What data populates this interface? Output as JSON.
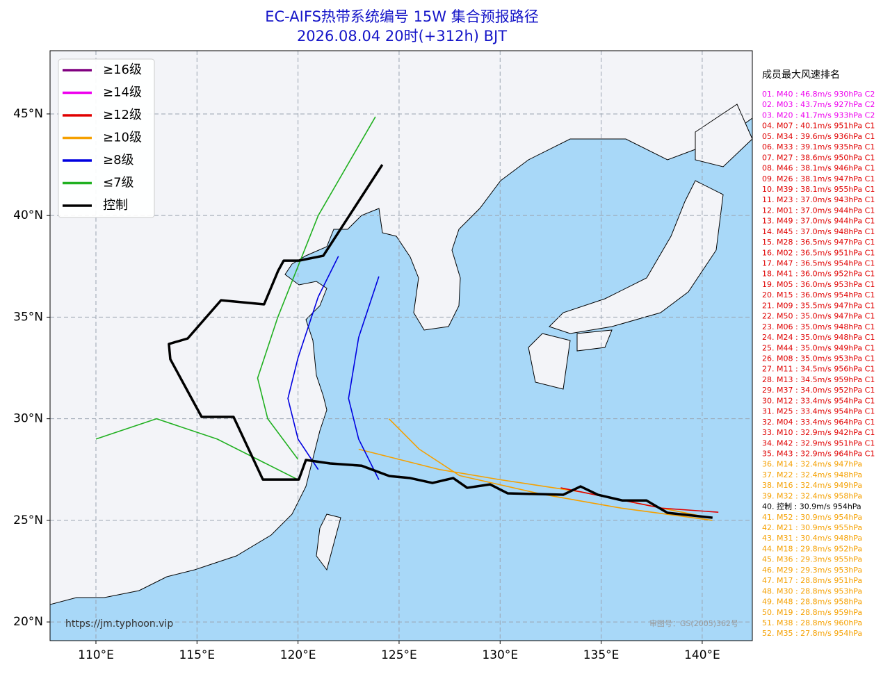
{
  "map": {
    "type": "track-map",
    "title": "EC-AIFS热带系统编号 15W 集合预报路径",
    "subtitle": "2026.08.04 20时(+312h) BJT",
    "xlim": [
      107.73,
      142.48
    ],
    "ylim": [
      19.08,
      48.11
    ],
    "xticks": [
      {
        "value": 110,
        "label": "110°E"
      },
      {
        "value": 115,
        "label": "115°E"
      },
      {
        "value": 120,
        "label": "120°E"
      },
      {
        "value": 125,
        "label": "125°E"
      },
      {
        "value": 130,
        "label": "130°E"
      },
      {
        "value": 135,
        "label": "135°E"
      },
      {
        "value": 140,
        "label": "140°E"
      }
    ],
    "yticks": [
      {
        "value": 20,
        "label": "20°N"
      },
      {
        "value": 25,
        "label": "25°N"
      },
      {
        "value": 30,
        "label": "30°N"
      },
      {
        "value": 35,
        "label": "35°N"
      },
      {
        "value": 40,
        "label": "40°N"
      },
      {
        "value": 45,
        "label": "45°N"
      }
    ],
    "grid": true,
    "legend": [
      {
        "label": "≥16级",
        "color": "#800080"
      },
      {
        "label": "≥14级",
        "color": "#ee00ee"
      },
      {
        "label": "≥12级",
        "color": "#e00000"
      },
      {
        "label": "≥10级",
        "color": "#f5a000"
      },
      {
        "label": "≥8级",
        "color": "#0000e0"
      },
      {
        "label": "≤7级",
        "color": "#20b020"
      },
      {
        "label": "控制",
        "color": "#000000"
      }
    ],
    "tracks": [
      {
        "color": "#f5a000",
        "lon": [
          140.5,
          137,
          134,
          130,
          127,
          125,
          123
        ],
        "lat": [
          25.1,
          25.8,
          26.4,
          27,
          27.5,
          28,
          28.5
        ]
      },
      {
        "color": "#f5a000",
        "lon": [
          140.5,
          136,
          132,
          128,
          126,
          124.5
        ],
        "lat": [
          25,
          25.6,
          26.3,
          27.2,
          28.5,
          30
        ]
      },
      {
        "color": "#e00000",
        "lon": [
          140.8,
          138,
          136,
          133
        ],
        "lat": [
          25.4,
          25.6,
          26,
          26.6
        ]
      },
      {
        "color": "#0000e0",
        "lon": [
          121,
          120,
          119.5,
          120,
          121,
          122
        ],
        "lat": [
          27.5,
          29,
          31,
          33,
          36,
          38
        ]
      },
      {
        "color": "#0000e0",
        "lon": [
          124,
          123,
          122.5,
          123,
          124
        ],
        "lat": [
          27,
          29,
          31,
          34,
          37
        ]
      },
      {
        "color": "#20b020",
        "lon": [
          120,
          118,
          116,
          113,
          110
        ],
        "lat": [
          27,
          28,
          29,
          30,
          29
        ]
      },
      {
        "color": "#20b020",
        "lon": [
          120,
          118.5,
          118,
          119,
          121,
          123.83
        ],
        "lat": [
          28,
          30,
          32,
          35,
          40,
          44.86
        ]
      }
    ],
    "control_track": {
      "color": "#000000",
      "lon": [
        140.51,
        138.28,
        137.24,
        136.04,
        134.84,
        133.98,
        133.12,
        130.37,
        129.5,
        128.37,
        127.68,
        126.65,
        125.55,
        124.52,
        123.14,
        121.59,
        120.39,
        120.04,
        118.26,
        116.81,
        115.23,
        113.68,
        113.61,
        114.54,
        116.19,
        118.32,
        119.01,
        119.29,
        120.04,
        121.25,
        124.17
      ],
      "lat": [
        25.13,
        25.37,
        25.98,
        25.98,
        26.26,
        26.67,
        26.26,
        26.33,
        26.77,
        26.6,
        27.08,
        26.84,
        27.08,
        27.18,
        27.69,
        27.8,
        27.97,
        27.01,
        27.01,
        30.09,
        30.09,
        32.93,
        33.68,
        33.95,
        35.83,
        35.63,
        37.27,
        37.78,
        37.78,
        38.02,
        42.5
      ]
    },
    "ranking": {
      "title": "成员最大风速排名",
      "entries": [
        {
          "text": "01. M40 : 46.8m/s 930hPa C2",
          "color": "#ee00ee"
        },
        {
          "text": "02. M03 : 43.7m/s 927hPa C2",
          "color": "#ee00ee"
        },
        {
          "text": "03. M20 : 41.7m/s 933hPa C2",
          "color": "#ee00ee"
        },
        {
          "text": "04. M07 : 40.1m/s 951hPa C1",
          "color": "#e00000"
        },
        {
          "text": "05. M34 : 39.6m/s 936hPa C1",
          "color": "#e00000"
        },
        {
          "text": "06. M33 : 39.1m/s 935hPa C1",
          "color": "#e00000"
        },
        {
          "text": "07. M27 : 38.6m/s 950hPa C1",
          "color": "#e00000"
        },
        {
          "text": "08. M46 : 38.1m/s 946hPa C1",
          "color": "#e00000"
        },
        {
          "text": "09. M26 : 38.1m/s 947hPa C1",
          "color": "#e00000"
        },
        {
          "text": "10. M39 : 38.1m/s 955hPa C1",
          "color": "#e00000"
        },
        {
          "text": "11. M23 : 37.0m/s 943hPa C1",
          "color": "#e00000"
        },
        {
          "text": "12. M01 : 37.0m/s 944hPa C1",
          "color": "#e00000"
        },
        {
          "text": "13. M49 : 37.0m/s 944hPa C1",
          "color": "#e00000"
        },
        {
          "text": "14. M45 : 37.0m/s 948hPa C1",
          "color": "#e00000"
        },
        {
          "text": "15. M28 : 36.5m/s 947hPa C1",
          "color": "#e00000"
        },
        {
          "text": "16. M02 : 36.5m/s 951hPa C1",
          "color": "#e00000"
        },
        {
          "text": "17. M47 : 36.5m/s 954hPa C1",
          "color": "#e00000"
        },
        {
          "text": "18. M41 : 36.0m/s 952hPa C1",
          "color": "#e00000"
        },
        {
          "text": "19. M05 : 36.0m/s 953hPa C1",
          "color": "#e00000"
        },
        {
          "text": "20. M15 : 36.0m/s 954hPa C1",
          "color": "#e00000"
        },
        {
          "text": "21. M09 : 35.5m/s 947hPa C1",
          "color": "#e00000"
        },
        {
          "text": "22. M50 : 35.0m/s 947hPa C1",
          "color": "#e00000"
        },
        {
          "text": "23. M06 : 35.0m/s 948hPa C1",
          "color": "#e00000"
        },
        {
          "text": "24. M24 : 35.0m/s 948hPa C1",
          "color": "#e00000"
        },
        {
          "text": "25. M44 : 35.0m/s 949hPa C1",
          "color": "#e00000"
        },
        {
          "text": "26. M08 : 35.0m/s 953hPa C1",
          "color": "#e00000"
        },
        {
          "text": "27. M11 : 34.5m/s 956hPa C1",
          "color": "#e00000"
        },
        {
          "text": "28. M13 : 34.5m/s 959hPa C1",
          "color": "#e00000"
        },
        {
          "text": "29. M37 : 34.0m/s 952hPa C1",
          "color": "#e00000"
        },
        {
          "text": "30. M12 : 33.4m/s 954hPa C1",
          "color": "#e00000"
        },
        {
          "text": "31. M25 : 33.4m/s 954hPa C1",
          "color": "#e00000"
        },
        {
          "text": "32. M04 : 33.4m/s 964hPa C1",
          "color": "#e00000"
        },
        {
          "text": "33. M10 : 32.9m/s 942hPa C1",
          "color": "#e00000"
        },
        {
          "text": "34. M42 : 32.9m/s 951hPa C1",
          "color": "#e00000"
        },
        {
          "text": "35. M43 : 32.9m/s 964hPa C1",
          "color": "#e00000"
        },
        {
          "text": "36. M14 : 32.4m/s 947hPa",
          "color": "#f5a000"
        },
        {
          "text": "37. M22 : 32.4m/s 948hPa",
          "color": "#f5a000"
        },
        {
          "text": "38. M16 : 32.4m/s 949hPa",
          "color": "#f5a000"
        },
        {
          "text": "39. M32 : 32.4m/s 958hPa",
          "color": "#f5a000"
        },
        {
          "text": "40. 控制 : 30.9m/s 954hPa",
          "color": "#000000"
        },
        {
          "text": "41. M52 : 30.9m/s 954hPa",
          "color": "#f5a000"
        },
        {
          "text": "42. M21 : 30.9m/s 955hPa",
          "color": "#f5a000"
        },
        {
          "text": "43. M31 : 30.4m/s 948hPa",
          "color": "#f5a000"
        },
        {
          "text": "44. M18 : 29.8m/s 952hPa",
          "color": "#f5a000"
        },
        {
          "text": "45. M36 : 29.3m/s 955hPa",
          "color": "#f5a000"
        },
        {
          "text": "46. M29 : 29.3m/s 953hPa",
          "color": "#f5a000"
        },
        {
          "text": "47. M17 : 28.8m/s 951hPa",
          "color": "#f5a000"
        },
        {
          "text": "48. M30 : 28.8m/s 953hPa",
          "color": "#f5a000"
        },
        {
          "text": "49. M48 : 28.8m/s 958hPa",
          "color": "#f5a000"
        },
        {
          "text": "50. M19 : 28.8m/s 959hPa",
          "color": "#f5a000"
        },
        {
          "text": "51. M38 : 28.8m/s 960hPa",
          "color": "#f5a000"
        },
        {
          "text": "52. M35 : 27.8m/s 954hPa",
          "color": "#f5a000"
        }
      ]
    },
    "credit": "https://jm.typhoon.vip",
    "approval": "审图号：GS(2005)362号"
  }
}
